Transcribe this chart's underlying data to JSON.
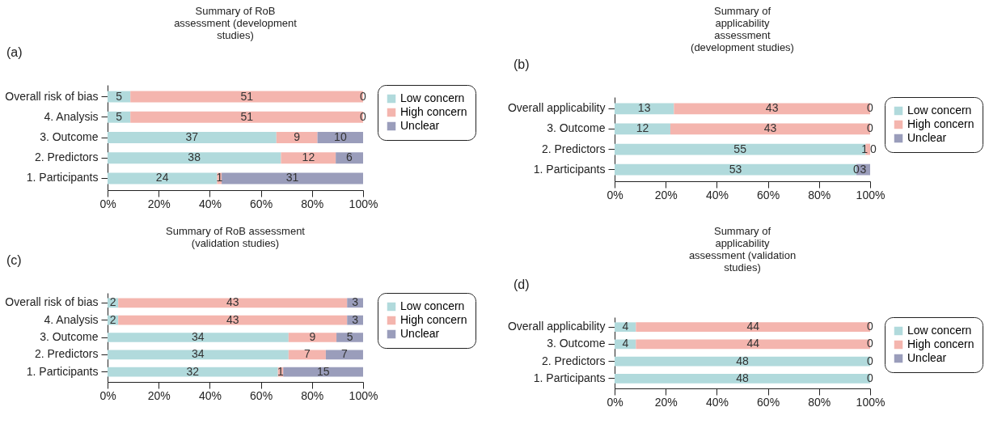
{
  "chart_data": [
    {
      "type": "bar",
      "stacked": true,
      "orientation": "horizontal",
      "title": "Summary of RoB assessment (development studies)",
      "annotations": [
        "(a)",
        {
          "text": "5",
          "x": 4.5,
          "y": "Overall risk of bias"
        },
        {
          "text": "51",
          "x": 54.5,
          "y": "Overall risk of bias"
        },
        {
          "text": "0",
          "x": 100,
          "y": "Overall risk of bias"
        },
        {
          "text": "5",
          "x": 4.5,
          "y": "4. Analysis"
        },
        {
          "text": "51",
          "x": 54.5,
          "y": "4. Analysis"
        },
        {
          "text": "0",
          "x": 100,
          "y": "4. Analysis"
        },
        {
          "text": "37",
          "x": 33,
          "y": "3. Outcome"
        },
        {
          "text": "9",
          "x": 74.1,
          "y": "3. Outcome"
        },
        {
          "text": "10",
          "x": 91.1,
          "y": "3. Outcome"
        },
        {
          "text": "38",
          "x": 33.9,
          "y": "2. Predictors"
        },
        {
          "text": "12",
          "x": 78.6,
          "y": "2. Predictors"
        },
        {
          "text": "6",
          "x": 94.6,
          "y": "2. Predictors"
        },
        {
          "text": "24",
          "x": 21.4,
          "y": "1. Participants"
        },
        {
          "text": "1",
          "x": 43.8,
          "y": "1. Participants"
        },
        {
          "text": "31",
          "x": 72.3,
          "y": "1. Participants"
        }
      ],
      "categories": [
        "Overall risk of bias",
        "4. Analysis",
        "3. Outcome",
        "2. Predictors",
        "1. Participants"
      ],
      "series": [
        {
          "name": "Low concern",
          "color": "#b1dadc",
          "values": [
            8.93,
            8.93,
            66.07,
            67.86,
            42.86
          ]
        },
        {
          "name": "High concern",
          "color": "#f4b5ae",
          "values": [
            91.07,
            91.07,
            16.07,
            21.43,
            1.79
          ]
        },
        {
          "name": "Unclear",
          "color": "#9a9dbb",
          "values": [
            0,
            0,
            17.86,
            10.71,
            55.35
          ]
        }
      ],
      "xlim": [
        0,
        100
      ],
      "xticks": [
        {
          "value": 0,
          "label": "0%"
        },
        {
          "value": 20,
          "label": "20%"
        },
        {
          "value": 40,
          "label": "40%"
        },
        {
          "value": 60,
          "label": "60%"
        },
        {
          "value": 80,
          "label": "80%"
        },
        {
          "value": 100,
          "label": "100%"
        }
      ],
      "legend": "right",
      "grid": false
    },
    {
      "type": "bar",
      "stacked": true,
      "orientation": "horizontal",
      "title": "Summary of applicability assessment (development studies)",
      "annotations": [
        "(b)",
        {
          "text": "13",
          "x": 11.6,
          "y": "Overall applicability"
        },
        {
          "text": "43",
          "x": 61.6,
          "y": "Overall applicability"
        },
        {
          "text": "0",
          "x": 100,
          "y": "Overall applicability"
        },
        {
          "text": "12",
          "x": 10.9,
          "y": "3. Outcome"
        },
        {
          "text": "43",
          "x": 60.9,
          "y": "3. Outcome"
        },
        {
          "text": "0",
          "x": 100,
          "y": "3. Outcome"
        },
        {
          "text": "55",
          "x": 49.1,
          "y": "2. Predictors"
        },
        {
          "text": "1",
          "x": 99.1,
          "y": "2. Predictors"
        },
        {
          "text": "0",
          "x": 100,
          "y": "2. Predictors"
        },
        {
          "text": "53",
          "x": 47.3,
          "y": "1. Participants"
        },
        {
          "text": "0",
          "x": 94.6,
          "y": "1. Participants"
        },
        {
          "text": "3",
          "x": 97.3,
          "y": "1. Participants"
        }
      ],
      "categories": [
        "Overall applicability",
        "3. Outcome",
        "2. Predictors",
        "1. Participants"
      ],
      "series": [
        {
          "name": "Low concern",
          "color": "#b1dadc",
          "values": [
            23.21,
            21.82,
            98.21,
            94.64
          ]
        },
        {
          "name": "High concern",
          "color": "#f4b5ae",
          "values": [
            76.79,
            78.18,
            1.79,
            0
          ]
        },
        {
          "name": "Unclear",
          "color": "#9a9dbb",
          "values": [
            0,
            0,
            0,
            5.36
          ]
        }
      ],
      "xlim": [
        0,
        100
      ],
      "xticks": [
        {
          "value": 0,
          "label": "0%"
        },
        {
          "value": 20,
          "label": "20%"
        },
        {
          "value": 40,
          "label": "40%"
        },
        {
          "value": 60,
          "label": "60%"
        },
        {
          "value": 80,
          "label": "80%"
        },
        {
          "value": 100,
          "label": "100%"
        }
      ],
      "legend": "right",
      "grid": false
    },
    {
      "type": "bar",
      "stacked": true,
      "orientation": "horizontal",
      "title": "Summary of RoB assessment (validation studies)",
      "annotations": [
        "(c)",
        {
          "text": "2",
          "x": 2.1,
          "y": "Overall risk of bias"
        },
        {
          "text": "43",
          "x": 49,
          "y": "Overall risk of bias"
        },
        {
          "text": "3",
          "x": 96.9,
          "y": "Overall risk of bias"
        },
        {
          "text": "2",
          "x": 2.1,
          "y": "4. Analysis"
        },
        {
          "text": "43",
          "x": 49,
          "y": "4. Analysis"
        },
        {
          "text": "3",
          "x": 96.9,
          "y": "4. Analysis"
        },
        {
          "text": "34",
          "x": 35.4,
          "y": "3. Outcome"
        },
        {
          "text": "9",
          "x": 80.2,
          "y": "3. Outcome"
        },
        {
          "text": "5",
          "x": 94.8,
          "y": "3. Outcome"
        },
        {
          "text": "34",
          "x": 35.4,
          "y": "2. Predictors"
        },
        {
          "text": "7",
          "x": 78.1,
          "y": "2. Predictors"
        },
        {
          "text": "7",
          "x": 92.7,
          "y": "2. Predictors"
        },
        {
          "text": "32",
          "x": 33.3,
          "y": "1. Participants"
        },
        {
          "text": "1",
          "x": 67.7,
          "y": "1. Participants"
        },
        {
          "text": "15",
          "x": 84.4,
          "y": "1. Participants"
        }
      ],
      "categories": [
        "Overall risk of bias",
        "4. Analysis",
        "3. Outcome",
        "2. Predictors",
        "1. Participants"
      ],
      "series": [
        {
          "name": "Low concern",
          "color": "#b1dadc",
          "values": [
            4.17,
            4.17,
            70.83,
            70.83,
            66.67
          ]
        },
        {
          "name": "High concern",
          "color": "#f4b5ae",
          "values": [
            89.58,
            89.58,
            18.75,
            14.58,
            2.08
          ]
        },
        {
          "name": "Unclear",
          "color": "#9a9dbb",
          "values": [
            6.25,
            6.25,
            10.42,
            14.58,
            31.25
          ]
        }
      ],
      "xlim": [
        0,
        100
      ],
      "xticks": [
        {
          "value": 0,
          "label": "0%"
        },
        {
          "value": 20,
          "label": "20%"
        },
        {
          "value": 40,
          "label": "40%"
        },
        {
          "value": 60,
          "label": "60%"
        },
        {
          "value": 80,
          "label": "80%"
        },
        {
          "value": 100,
          "label": "100%"
        }
      ],
      "legend": "right",
      "grid": false
    },
    {
      "type": "bar",
      "stacked": true,
      "orientation": "horizontal",
      "title": "Summary of applicability assessment (validation studies)",
      "annotations": [
        "(d)",
        {
          "text": "4",
          "x": 4.2,
          "y": "Overall applicability"
        },
        {
          "text": "44",
          "x": 54.2,
          "y": "Overall applicability"
        },
        {
          "text": "0",
          "x": 100,
          "y": "Overall applicability"
        },
        {
          "text": "4",
          "x": 4.2,
          "y": "3. Outcome"
        },
        {
          "text": "44",
          "x": 54.2,
          "y": "3. Outcome"
        },
        {
          "text": "0",
          "x": 100,
          "y": "3. Outcome"
        },
        {
          "text": "48",
          "x": 50,
          "y": "2. Predictors"
        },
        {
          "text": "0",
          "x": 100,
          "y": "2. Predictors"
        },
        {
          "text": "48",
          "x": 50,
          "y": "1. Participants"
        },
        {
          "text": "0",
          "x": 100,
          "y": "1. Participants"
        }
      ],
      "categories": [
        "Overall applicability",
        "3. Outcome",
        "2. Predictors",
        "1. Participants"
      ],
      "series": [
        {
          "name": "Low concern",
          "color": "#b1dadc",
          "values": [
            8.33,
            8.33,
            100,
            100
          ]
        },
        {
          "name": "High concern",
          "color": "#f4b5ae",
          "values": [
            91.67,
            91.67,
            0,
            0
          ]
        },
        {
          "name": "Unclear",
          "color": "#9a9dbb",
          "values": [
            0,
            0,
            0,
            0
          ]
        }
      ],
      "xlim": [
        0,
        100
      ],
      "xticks": [
        {
          "value": 0,
          "label": "0%"
        },
        {
          "value": 20,
          "label": "20%"
        },
        {
          "value": 40,
          "label": "40%"
        },
        {
          "value": 60,
          "label": "60%"
        },
        {
          "value": 80,
          "label": "80%"
        },
        {
          "value": 100,
          "label": "100%"
        }
      ],
      "legend": "right",
      "grid": false
    }
  ]
}
